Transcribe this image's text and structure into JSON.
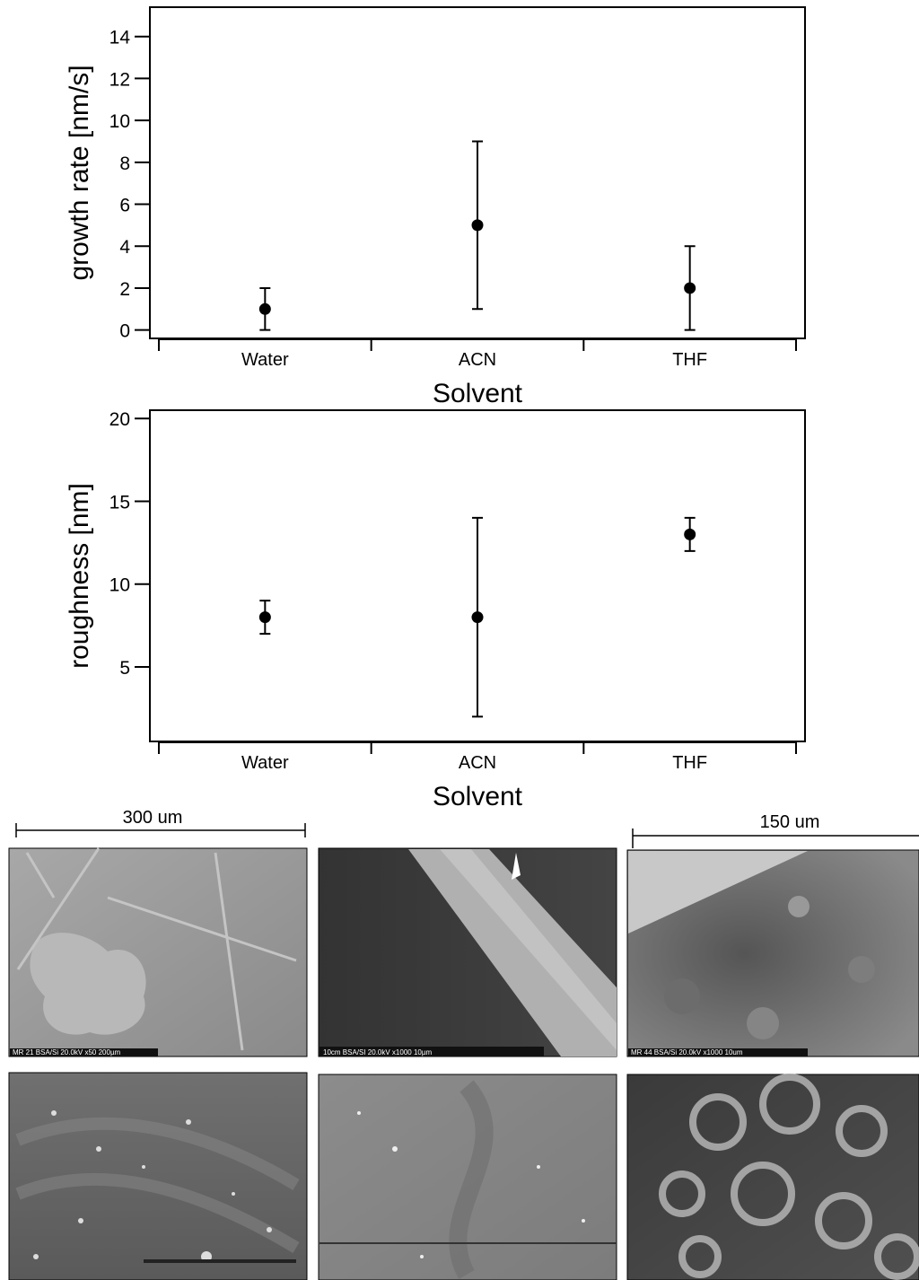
{
  "chart_data": [
    {
      "type": "errorbar",
      "categories": [
        "Water",
        "ACN",
        "THF"
      ],
      "values": [
        1,
        5,
        2
      ],
      "errors": [
        1,
        4,
        2
      ],
      "color": "#000000",
      "ylim": [
        -0.4,
        15.4
      ],
      "yticks": [
        0,
        2,
        4,
        6,
        8,
        10,
        12,
        14
      ],
      "xlabel": "Solvent",
      "ylabel": "growth rate [nm/s]"
    },
    {
      "type": "errorbar",
      "categories": [
        "Water",
        "ACN",
        "THF"
      ],
      "values": [
        8,
        8,
        13
      ],
      "errors": [
        1,
        6,
        1
      ],
      "color": "#000000",
      "ylim": [
        0.5,
        20.5
      ],
      "yticks": [
        5,
        10,
        15,
        20
      ],
      "xlabel": "Solvent",
      "ylabel": "roughness [nm]"
    }
  ],
  "scale_bars": [
    "300 um",
    "150 um"
  ],
  "micrograph_captions": [
    "MR 21 BSA/Si  20.0kV  x50  200µm",
    "10cm BSA/SI  20.0kV  x1000   10µm",
    "MR 44 BSA/Si  20.0kV  x1000   10um"
  ]
}
